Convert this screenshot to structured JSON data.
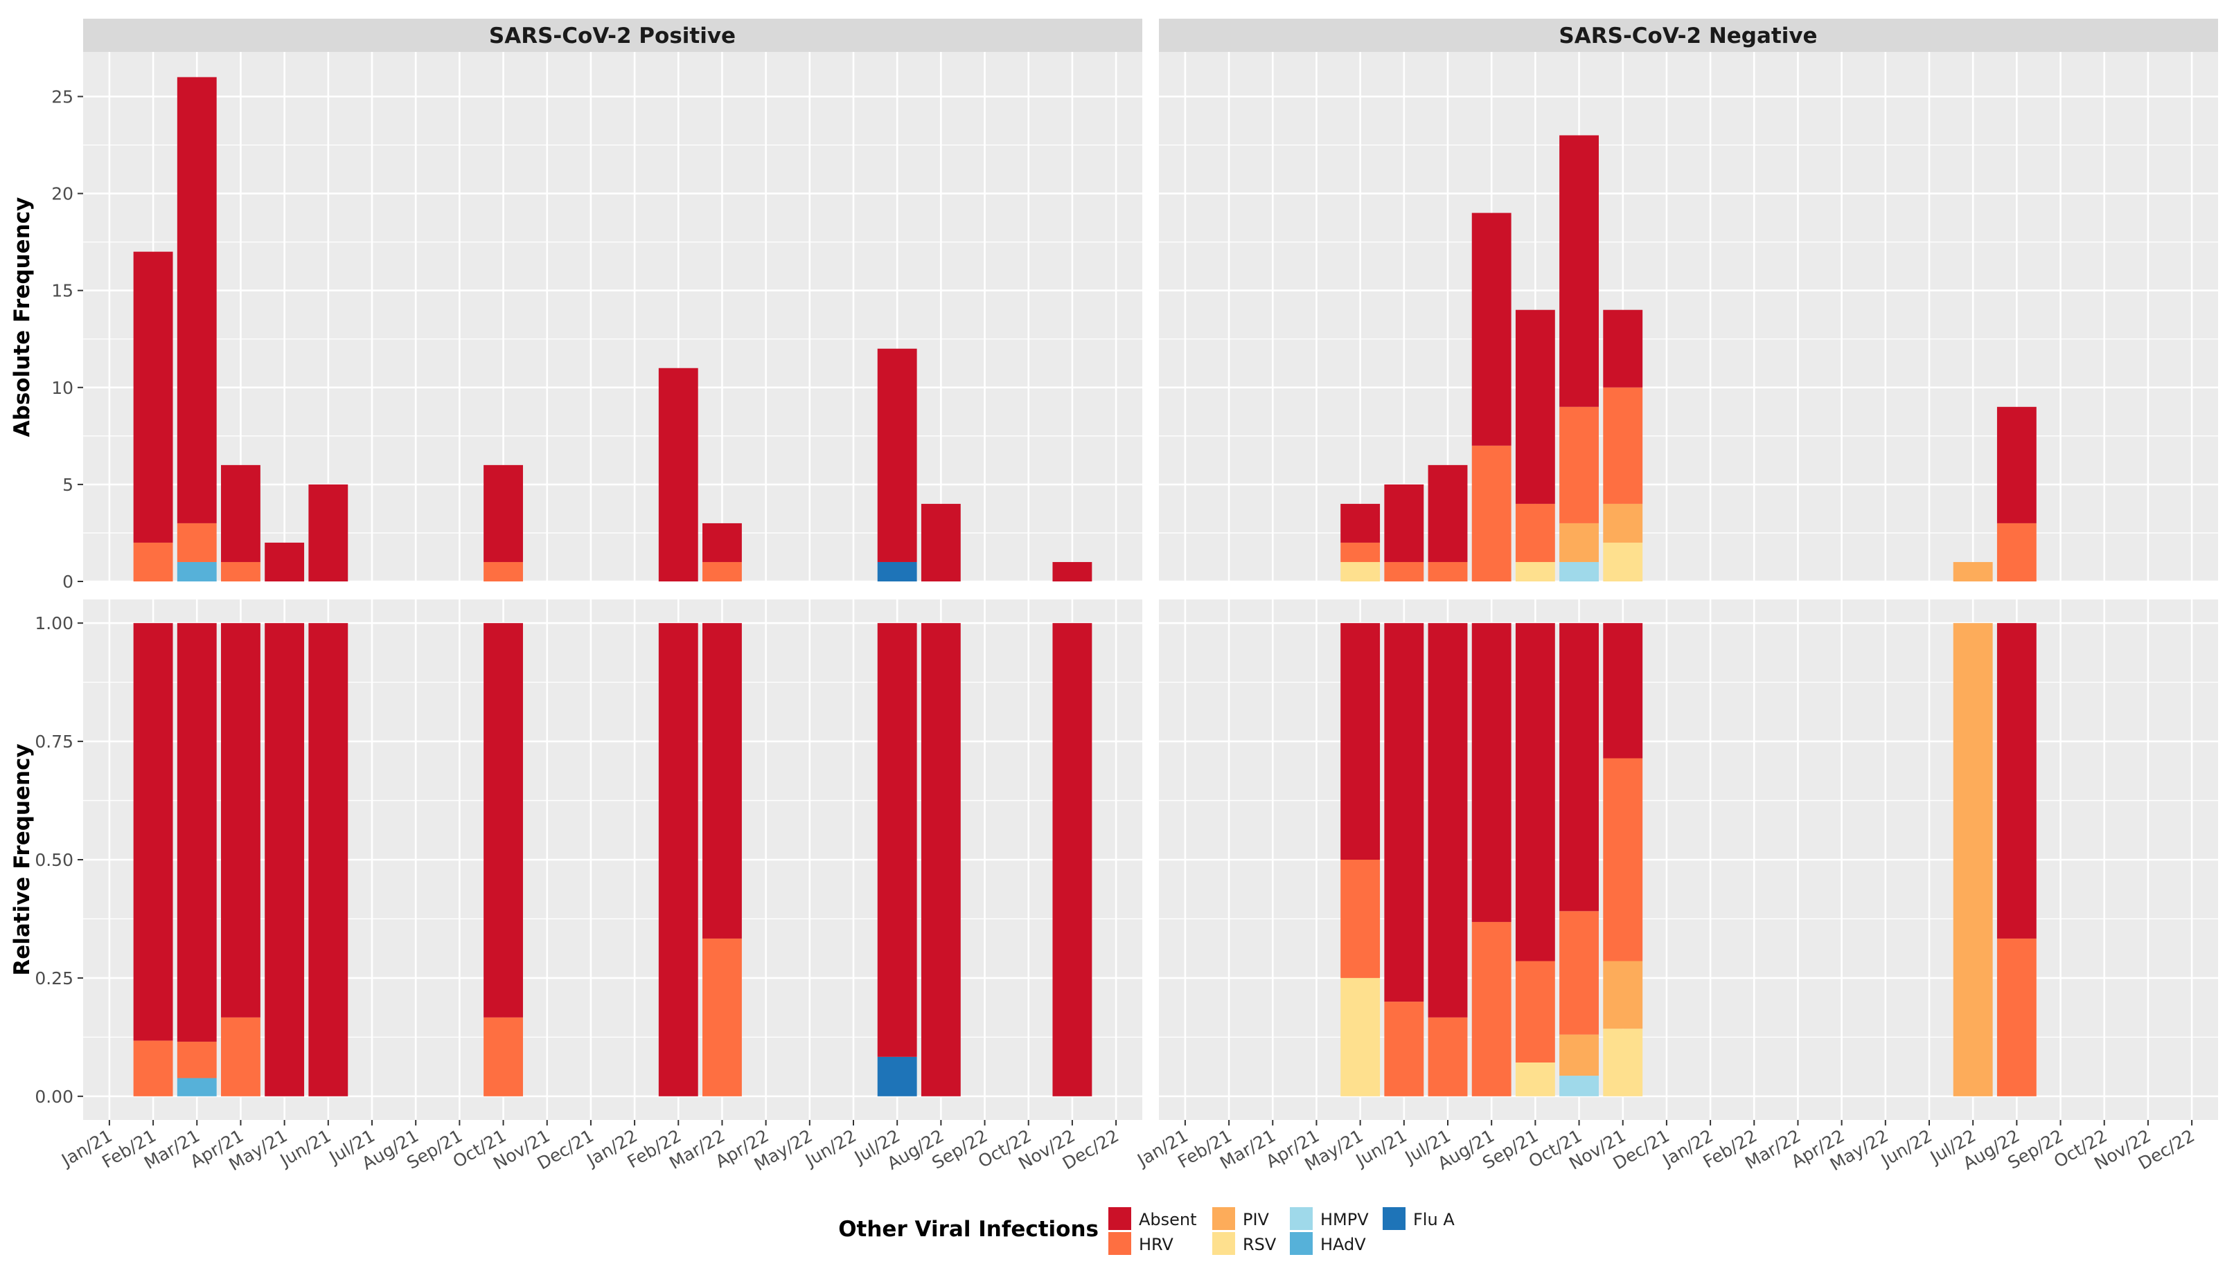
{
  "chart_data": {
    "type": "bar",
    "stacked": true,
    "facet_columns": [
      "SARS-CoV-2 Positive",
      "SARS-CoV-2 Negative"
    ],
    "facet_rows": [
      "Absolute Frequency",
      "Relative Frequency"
    ],
    "categories": [
      "Jan/21",
      "Feb/21",
      "Mar/21",
      "Apr/21",
      "May/21",
      "Jun/21",
      "Jul/21",
      "Aug/21",
      "Sep/21",
      "Oct/21",
      "Nov/21",
      "Dec/21",
      "Jan/22",
      "Feb/22",
      "Mar/22",
      "Apr/22",
      "May/22",
      "Jun/22",
      "Jul/22",
      "Aug/22",
      "Sep/22",
      "Oct/22",
      "Nov/22",
      "Dec/22"
    ],
    "series_order": [
      "RSV",
      "HMPV",
      "HAdV",
      "Flu A",
      "PIV",
      "HRV",
      "Absent"
    ],
    "colors": {
      "Absent": "#CB1128",
      "HRV": "#FE6F41",
      "PIV": "#FDAC5A",
      "RSV": "#FEE08E",
      "HMPV": "#9FD9EA",
      "HAdV": "#56B1D9",
      "Flu A": "#1E74B8"
    },
    "abs_ylim": [
      0,
      27.3
    ],
    "abs_yticks": [
      0,
      5,
      10,
      15,
      20,
      25
    ],
    "abs_ytick_labels": [
      "0",
      "5",
      "10",
      "15",
      "20",
      "25"
    ],
    "rel_ylim": [
      -0.05,
      1.05
    ],
    "rel_yticks": [
      0,
      0.25,
      0.5,
      0.75,
      1
    ],
    "rel_ytick_labels": [
      "0.00",
      "0.25",
      "0.50",
      "0.75",
      "1.00"
    ],
    "panels": {
      "positive": [
        {
          "month": "Feb/21",
          "counts": {
            "HRV": 2,
            "Absent": 15
          }
        },
        {
          "month": "Mar/21",
          "counts": {
            "HAdV": 1,
            "HRV": 2,
            "Absent": 23
          }
        },
        {
          "month": "Apr/21",
          "counts": {
            "HRV": 1,
            "Absent": 5
          }
        },
        {
          "month": "May/21",
          "counts": {
            "Absent": 2
          }
        },
        {
          "month": "Jun/21",
          "counts": {
            "Absent": 5
          }
        },
        {
          "month": "Oct/21",
          "counts": {
            "HRV": 1,
            "Absent": 5
          }
        },
        {
          "month": "Feb/22",
          "counts": {
            "Absent": 11
          }
        },
        {
          "month": "Mar/22",
          "counts": {
            "HRV": 1,
            "Absent": 2
          }
        },
        {
          "month": "Jul/22",
          "counts": {
            "Flu A": 1,
            "Absent": 11
          }
        },
        {
          "month": "Aug/22",
          "counts": {
            "Absent": 4
          }
        },
        {
          "month": "Nov/22",
          "counts": {
            "Absent": 1
          }
        }
      ],
      "negative": [
        {
          "month": "May/21",
          "counts": {
            "RSV": 1,
            "HRV": 1,
            "Absent": 2
          }
        },
        {
          "month": "Jun/21",
          "counts": {
            "HRV": 1,
            "Absent": 4
          }
        },
        {
          "month": "Jul/21",
          "counts": {
            "HRV": 1,
            "Absent": 5
          }
        },
        {
          "month": "Aug/21",
          "counts": {
            "HRV": 7,
            "Absent": 12
          }
        },
        {
          "month": "Sep/21",
          "counts": {
            "RSV": 1,
            "HRV": 3,
            "Absent": 10
          }
        },
        {
          "month": "Oct/21",
          "counts": {
            "HMPV": 1,
            "PIV": 2,
            "HRV": 6,
            "Absent": 14
          }
        },
        {
          "month": "Nov/21",
          "counts": {
            "RSV": 2,
            "PIV": 2,
            "HRV": 6,
            "Absent": 4
          }
        },
        {
          "month": "Jul/22",
          "counts": {
            "PIV": 1
          }
        },
        {
          "month": "Aug/22",
          "counts": {
            "HRV": 3,
            "Absent": 6
          }
        }
      ]
    },
    "legend": {
      "title": "Other Viral Infections",
      "position": "bottom",
      "entries": [
        "Absent",
        "HRV",
        "PIV",
        "RSV",
        "HMPV",
        "HAdV",
        "Flu A"
      ]
    }
  }
}
